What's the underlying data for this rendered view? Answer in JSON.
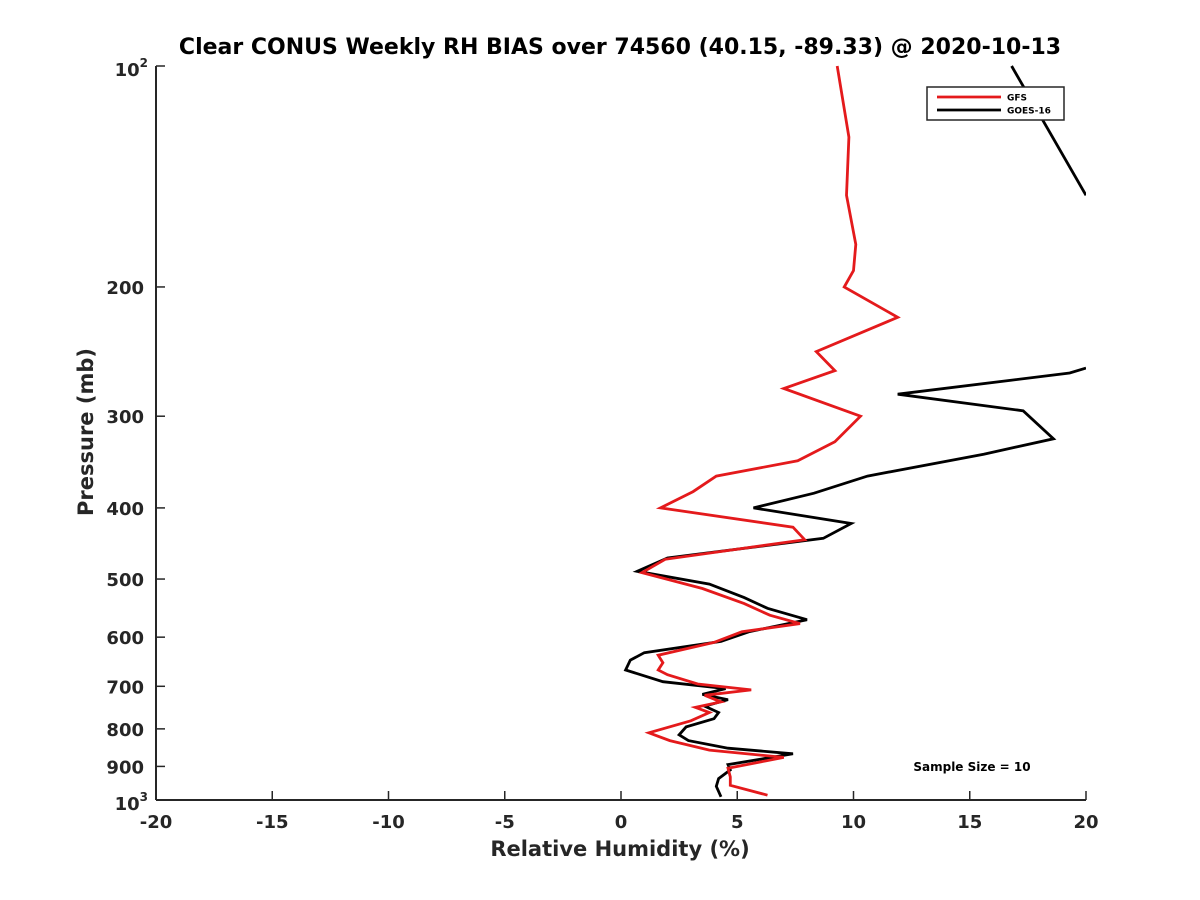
{
  "chart_data": {
    "type": "line",
    "title": "Clear CONUS Weekly RH BIAS over 74560 (40.15, -89.33) @ 2020-10-13",
    "xlabel": "Relative Humidity (%)",
    "ylabel": "Pressure (mb)",
    "xlim": [
      -20,
      20
    ],
    "ylim": [
      100,
      1000
    ],
    "y_scale": "log",
    "y_reversed": true,
    "x_ticks": [
      "-20",
      "-15",
      "-10",
      "-5",
      "0",
      "5",
      "10",
      "15",
      "20"
    ],
    "y_ticks": [
      {
        "value": 100,
        "base": "10",
        "exp": "2"
      },
      {
        "value": 200,
        "label": "200"
      },
      {
        "value": 300,
        "label": "300"
      },
      {
        "value": 400,
        "label": "400"
      },
      {
        "value": 500,
        "label": "500"
      },
      {
        "value": 600,
        "label": "600"
      },
      {
        "value": 700,
        "label": "700"
      },
      {
        "value": 800,
        "label": "800"
      },
      {
        "value": 900,
        "label": "900"
      },
      {
        "value": 1000,
        "base": "10",
        "exp": "3"
      }
    ],
    "grid": false,
    "legend_position": "top-right",
    "annotation": "Sample Size = 10",
    "series": [
      {
        "name": "GFS",
        "color": "#e41a1c",
        "points": [
          [
            9.3,
            100
          ],
          [
            9.8,
            125
          ],
          [
            9.7,
            150
          ],
          [
            10.1,
            175
          ],
          [
            10.0,
            190
          ],
          [
            9.6,
            200
          ],
          [
            11.9,
            220
          ],
          [
            8.4,
            245
          ],
          [
            9.2,
            260
          ],
          [
            7.0,
            275
          ],
          [
            10.3,
            300
          ],
          [
            9.2,
            325
          ],
          [
            7.6,
            345
          ],
          [
            4.1,
            362
          ],
          [
            3.1,
            380
          ],
          [
            1.7,
            400
          ],
          [
            7.4,
            425
          ],
          [
            7.9,
            442
          ],
          [
            1.9,
            470
          ],
          [
            0.9,
            490
          ],
          [
            3.5,
            515
          ],
          [
            5.3,
            540
          ],
          [
            6.4,
            560
          ],
          [
            7.7,
            575
          ],
          [
            5.2,
            590
          ],
          [
            4.0,
            610
          ],
          [
            1.6,
            635
          ],
          [
            1.8,
            650
          ],
          [
            1.6,
            665
          ],
          [
            2.0,
            675
          ],
          [
            3.3,
            695
          ],
          [
            5.6,
            708
          ],
          [
            3.6,
            720
          ],
          [
            4.3,
            735
          ],
          [
            3.2,
            748
          ],
          [
            3.8,
            760
          ],
          [
            3.0,
            780
          ],
          [
            1.2,
            810
          ],
          [
            2.1,
            830
          ],
          [
            3.8,
            855
          ],
          [
            7.0,
            875
          ],
          [
            4.6,
            905
          ],
          [
            4.7,
            930
          ],
          [
            4.7,
            955
          ],
          [
            6.3,
            985
          ]
        ]
      },
      {
        "name": "GOES-16",
        "color": "#000000",
        "points": [
          [
            16.8,
            100
          ],
          [
            20.0,
            150
          ],
          [
            null,
            null
          ],
          [
            20.0,
            258
          ],
          [
            19.3,
            262
          ],
          [
            11.9,
            280
          ],
          [
            17.3,
            295
          ],
          [
            18.6,
            322
          ],
          [
            15.6,
            338
          ],
          [
            10.6,
            362
          ],
          [
            8.3,
            382
          ],
          [
            5.7,
            400
          ],
          [
            9.9,
            420
          ],
          [
            8.7,
            440
          ],
          [
            2.0,
            468
          ],
          [
            0.7,
            488
          ],
          [
            3.8,
            508
          ],
          [
            5.3,
            530
          ],
          [
            6.3,
            548
          ],
          [
            8.0,
            568
          ],
          [
            5.5,
            590
          ],
          [
            4.3,
            608
          ],
          [
            1.0,
            630
          ],
          [
            0.4,
            645
          ],
          [
            0.2,
            665
          ],
          [
            1.8,
            690
          ],
          [
            4.5,
            705
          ],
          [
            3.5,
            718
          ],
          [
            4.6,
            730
          ],
          [
            3.6,
            745
          ],
          [
            4.2,
            760
          ],
          [
            4.0,
            775
          ],
          [
            2.8,
            795
          ],
          [
            2.5,
            815
          ],
          [
            2.9,
            830
          ],
          [
            4.6,
            850
          ],
          [
            7.4,
            865
          ],
          [
            4.6,
            895
          ],
          [
            4.7,
            910
          ],
          [
            4.2,
            935
          ],
          [
            4.1,
            958
          ],
          [
            4.3,
            990
          ]
        ]
      }
    ]
  }
}
